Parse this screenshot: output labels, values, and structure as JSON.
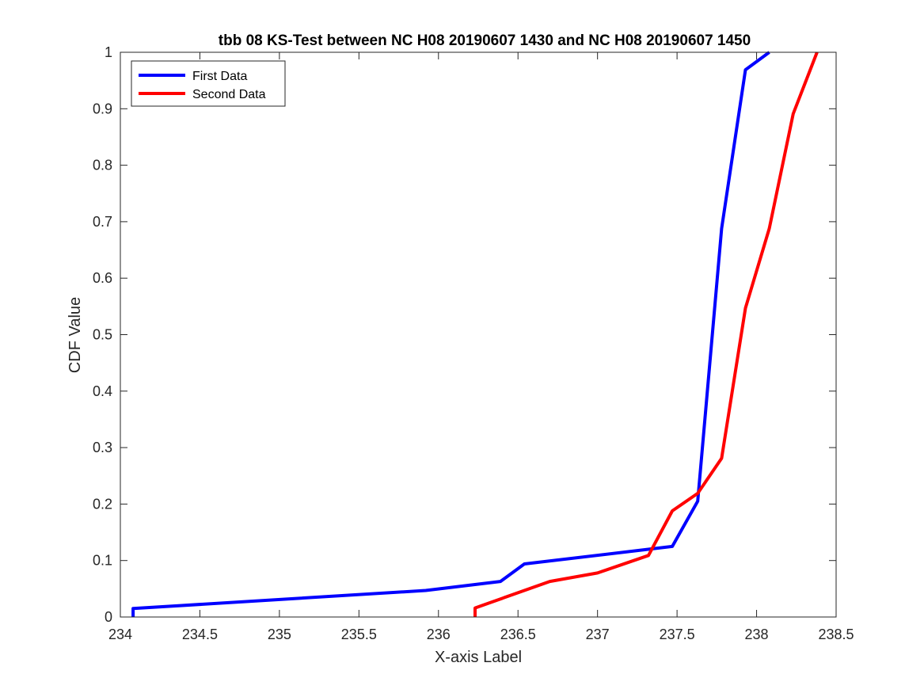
{
  "chart_data": {
    "type": "line",
    "title": "tbb 08 KS-Test between NC H08 20190607 1430 and NC H08 20190607 1450",
    "xlabel": "X-axis Label",
    "ylabel": "CDF Value",
    "xlim": [
      234,
      238.5
    ],
    "ylim": [
      0,
      1
    ],
    "xticks": [
      234,
      234.5,
      235,
      235.5,
      236,
      236.5,
      237,
      237.5,
      238,
      238.5
    ],
    "xtick_labels": [
      "234",
      "234.5",
      "235",
      "235.5",
      "236",
      "236.5",
      "237",
      "237.5",
      "238",
      "238.5"
    ],
    "yticks": [
      0,
      0.1,
      0.2,
      0.3,
      0.4,
      0.5,
      0.6,
      0.7,
      0.8,
      0.9,
      1
    ],
    "ytick_labels": [
      "0",
      "0.1",
      "0.2",
      "0.3",
      "0.4",
      "0.5",
      "0.6",
      "0.7",
      "0.8",
      "0.9",
      "1"
    ],
    "grid": false,
    "legend_position": "top-left",
    "series": [
      {
        "name": "First Data",
        "color": "#0000ff",
        "x": [
          234.08,
          234.08,
          235.92,
          236.39,
          236.54,
          237.47,
          237.63,
          237.78,
          237.93,
          238.08
        ],
        "y": [
          0,
          0.015,
          0.047,
          0.063,
          0.094,
          0.125,
          0.205,
          0.688,
          0.969,
          1.0
        ]
      },
      {
        "name": "Second Data",
        "color": "#ff0000",
        "x": [
          236.23,
          236.23,
          236.7,
          237.0,
          237.32,
          237.47,
          237.63,
          237.78,
          237.93,
          238.08,
          238.23,
          238.38
        ],
        "y": [
          0,
          0.016,
          0.063,
          0.078,
          0.109,
          0.188,
          0.219,
          0.281,
          0.547,
          0.688,
          0.891,
          1.0
        ]
      }
    ]
  }
}
